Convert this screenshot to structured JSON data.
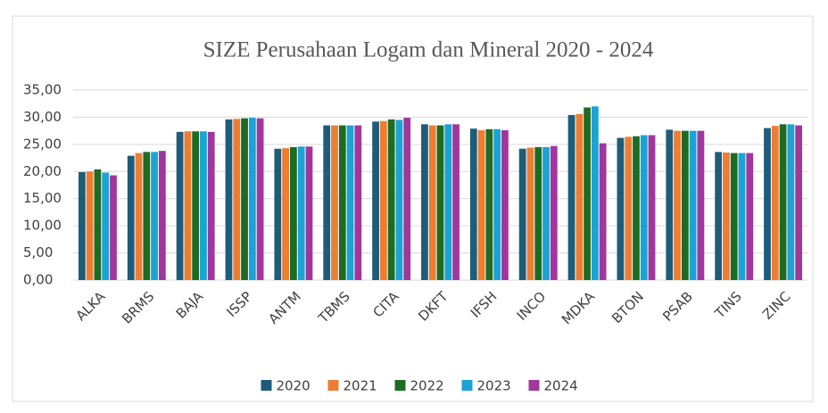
{
  "chart_data": {
    "type": "bar",
    "title": "SIZE Perusahaan Logam dan Mineral 2020 - 2024",
    "categories": [
      "ALKA",
      "BRMS",
      "BAJA",
      "ISSP",
      "ANTM",
      "TBMS",
      "CITA",
      "DKFT",
      "IFSH",
      "INCO",
      "MDKA",
      "BTON",
      "PSAB",
      "TINS",
      "ZINC"
    ],
    "series": [
      {
        "name": "2020",
        "color": "#1f5c7a",
        "values": [
          19.9,
          22.9,
          27.3,
          29.6,
          24.2,
          28.5,
          29.2,
          28.7,
          27.9,
          24.2,
          30.4,
          26.2,
          27.7,
          23.6,
          28.0
        ]
      },
      {
        "name": "2021",
        "color": "#ed7d31",
        "values": [
          20.0,
          23.4,
          27.4,
          29.7,
          24.3,
          28.5,
          29.3,
          28.5,
          27.6,
          24.4,
          30.6,
          26.4,
          27.5,
          23.5,
          28.4
        ]
      },
      {
        "name": "2022",
        "color": "#1e6b24",
        "values": [
          20.4,
          23.6,
          27.4,
          29.8,
          24.5,
          28.5,
          29.6,
          28.5,
          27.8,
          24.5,
          31.8,
          26.5,
          27.5,
          23.4,
          28.7
        ]
      },
      {
        "name": "2023",
        "color": "#1aa3d4",
        "values": [
          19.8,
          23.6,
          27.4,
          29.9,
          24.6,
          28.5,
          29.5,
          28.7,
          27.8,
          24.5,
          32.0,
          26.7,
          27.5,
          23.4,
          28.7
        ]
      },
      {
        "name": "2024",
        "color": "#a0379c",
        "values": [
          19.3,
          23.8,
          27.3,
          29.8,
          24.6,
          28.5,
          29.9,
          28.7,
          27.6,
          24.7,
          25.2,
          26.7,
          27.5,
          23.4,
          28.5
        ]
      }
    ],
    "ylim": [
      0,
      35
    ],
    "yticks": [
      {
        "value": 0,
        "label": "0,00"
      },
      {
        "value": 5,
        "label": "5,00"
      },
      {
        "value": 10,
        "label": "10,00"
      },
      {
        "value": 15,
        "label": "15,00"
      },
      {
        "value": 20,
        "label": "20,00"
      },
      {
        "value": 25,
        "label": "25,00"
      },
      {
        "value": 30,
        "label": "30,00"
      },
      {
        "value": 35,
        "label": "35,00"
      }
    ],
    "grid": true,
    "legend": "bottom"
  }
}
